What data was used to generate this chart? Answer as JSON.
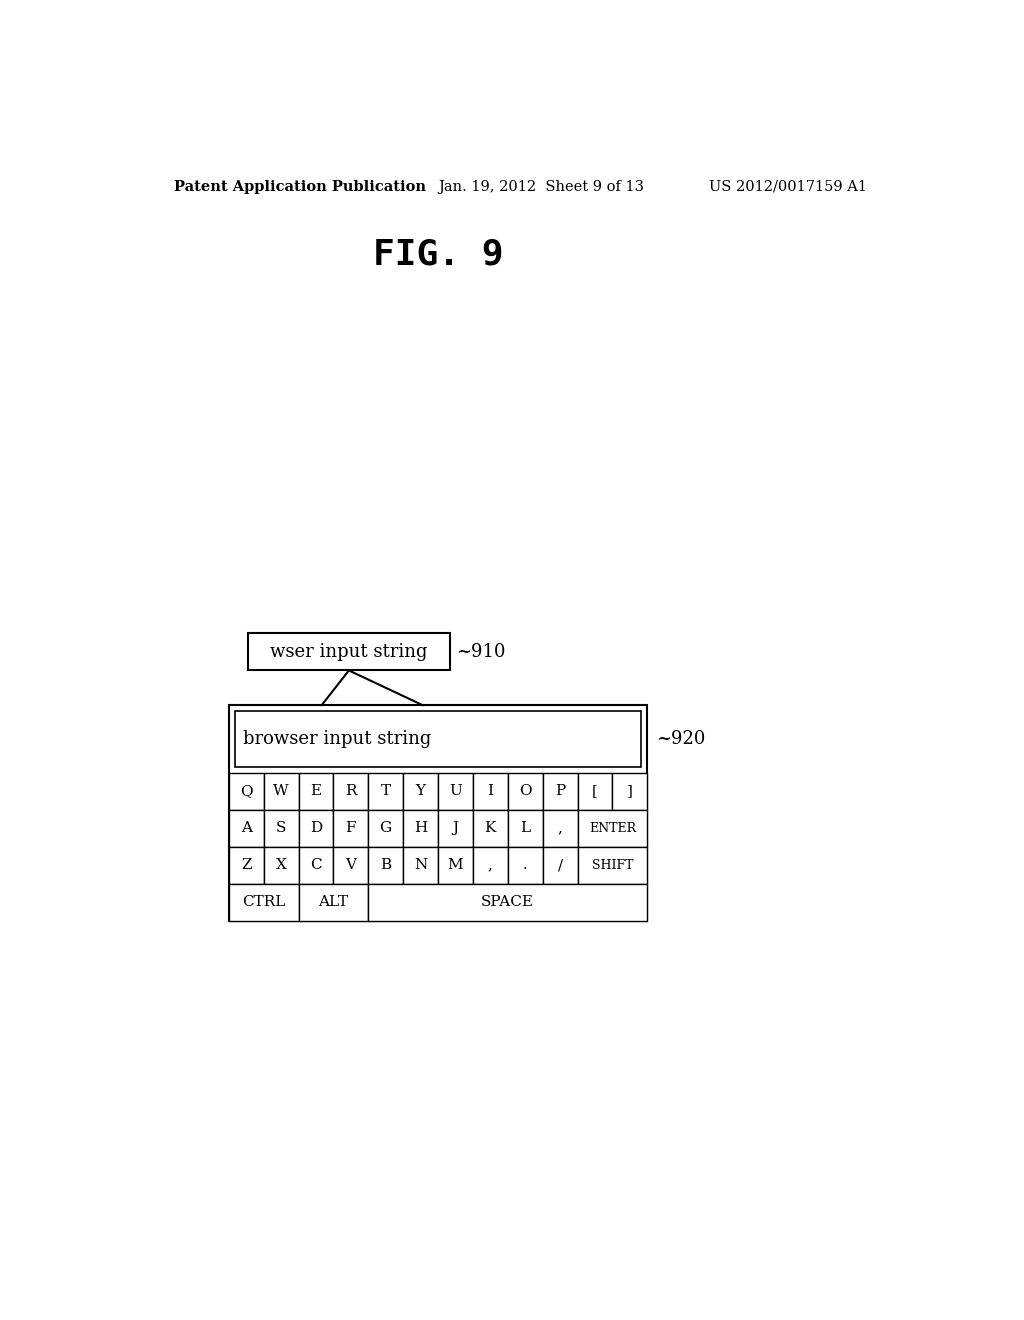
{
  "background_color": "#ffffff",
  "header_left": "Patent Application Publication",
  "header_center": "Jan. 19, 2012  Sheet 9 of 13",
  "header_right": "US 2012/0017159 A1",
  "fig_label": "FIG. 9",
  "box910_text": "wser input string",
  "box910_label": "~910",
  "box920_label": "~920",
  "browser_text": "browser input string",
  "text_color": "#000000",
  "line_color": "#000000",
  "box_fill": "#ffffff",
  "font_size_header": 10.5,
  "font_size_fig": 26,
  "font_size_keys": 11,
  "font_size_label": 13,
  "font_size_browser": 13
}
